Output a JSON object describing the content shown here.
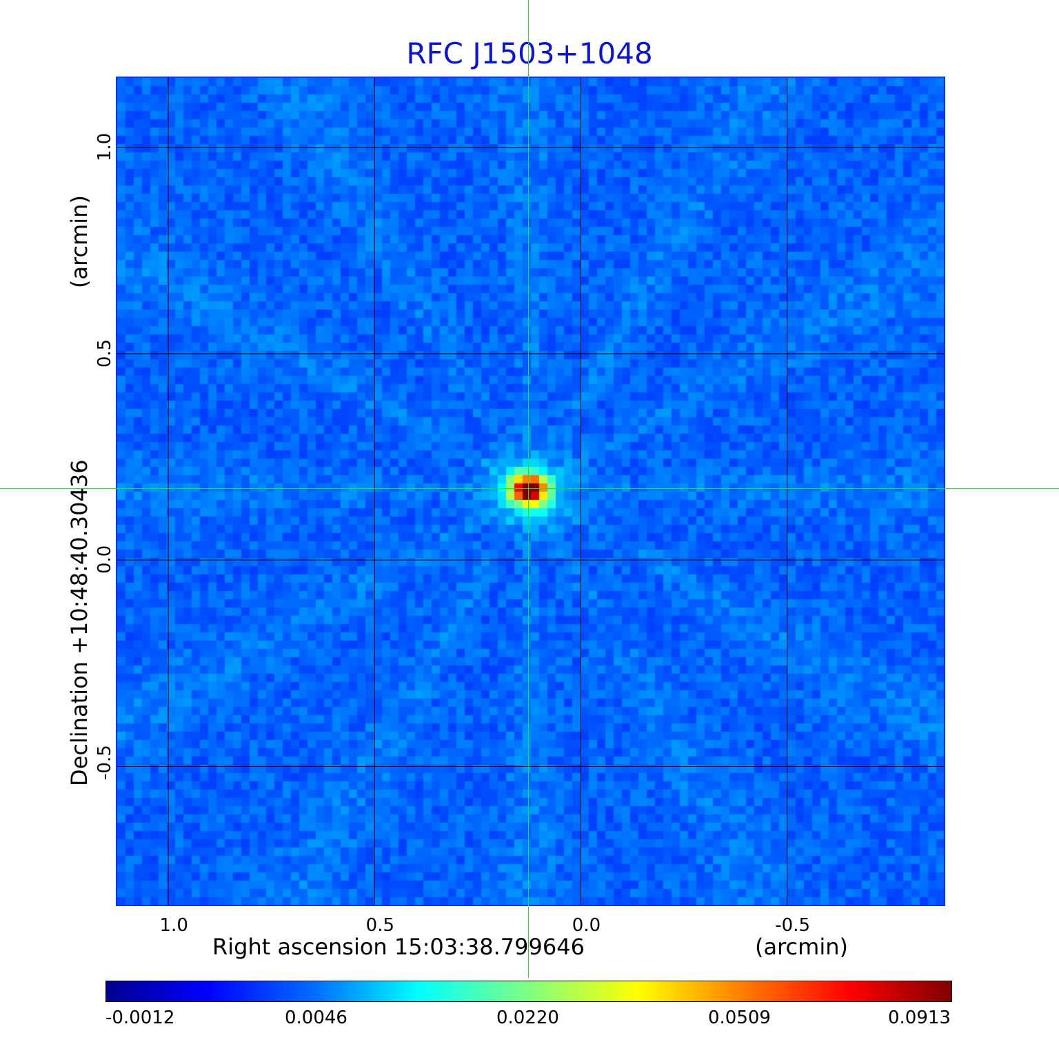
{
  "title": "RFC J1503+1048",
  "chart_data": {
    "type": "heatmap",
    "title": "RFC J1503+1048",
    "xlabel": "Right ascension  15:03:38.799646",
    "xunit": "(arcmin)",
    "ylabel": "Declination  +10:48:40.30436",
    "yunit": "(arcmin)",
    "x_ticks": [
      "1.0",
      "0.5",
      "0.0",
      "-0.5"
    ],
    "y_ticks": [
      "1.0",
      "0.5",
      "0.0",
      "-0.5"
    ],
    "xlim": [
      1.124,
      -0.88
    ],
    "ylim": [
      -0.835,
      1.168
    ],
    "grid": true,
    "x_tick_values": [
      1.0,
      0.5,
      0.0,
      -0.5
    ],
    "y_tick_values": [
      1.0,
      0.5,
      0.0,
      -0.5
    ],
    "peak": {
      "x": 0.125,
      "y": 0.17,
      "value": 0.0913
    },
    "crosshair": {
      "x": 0.125,
      "y": 0.17
    },
    "colormap": "jet",
    "colorbar": {
      "ticks": [
        "-0.0012",
        "0.0046",
        "0.0220",
        "0.0509",
        "0.0913"
      ],
      "range": [
        -0.0012,
        0.0913
      ]
    }
  },
  "colors": {
    "title": "#0a14d8",
    "frame": "#1030ff",
    "crosshair": "#22dd22",
    "grid": "#000000"
  }
}
